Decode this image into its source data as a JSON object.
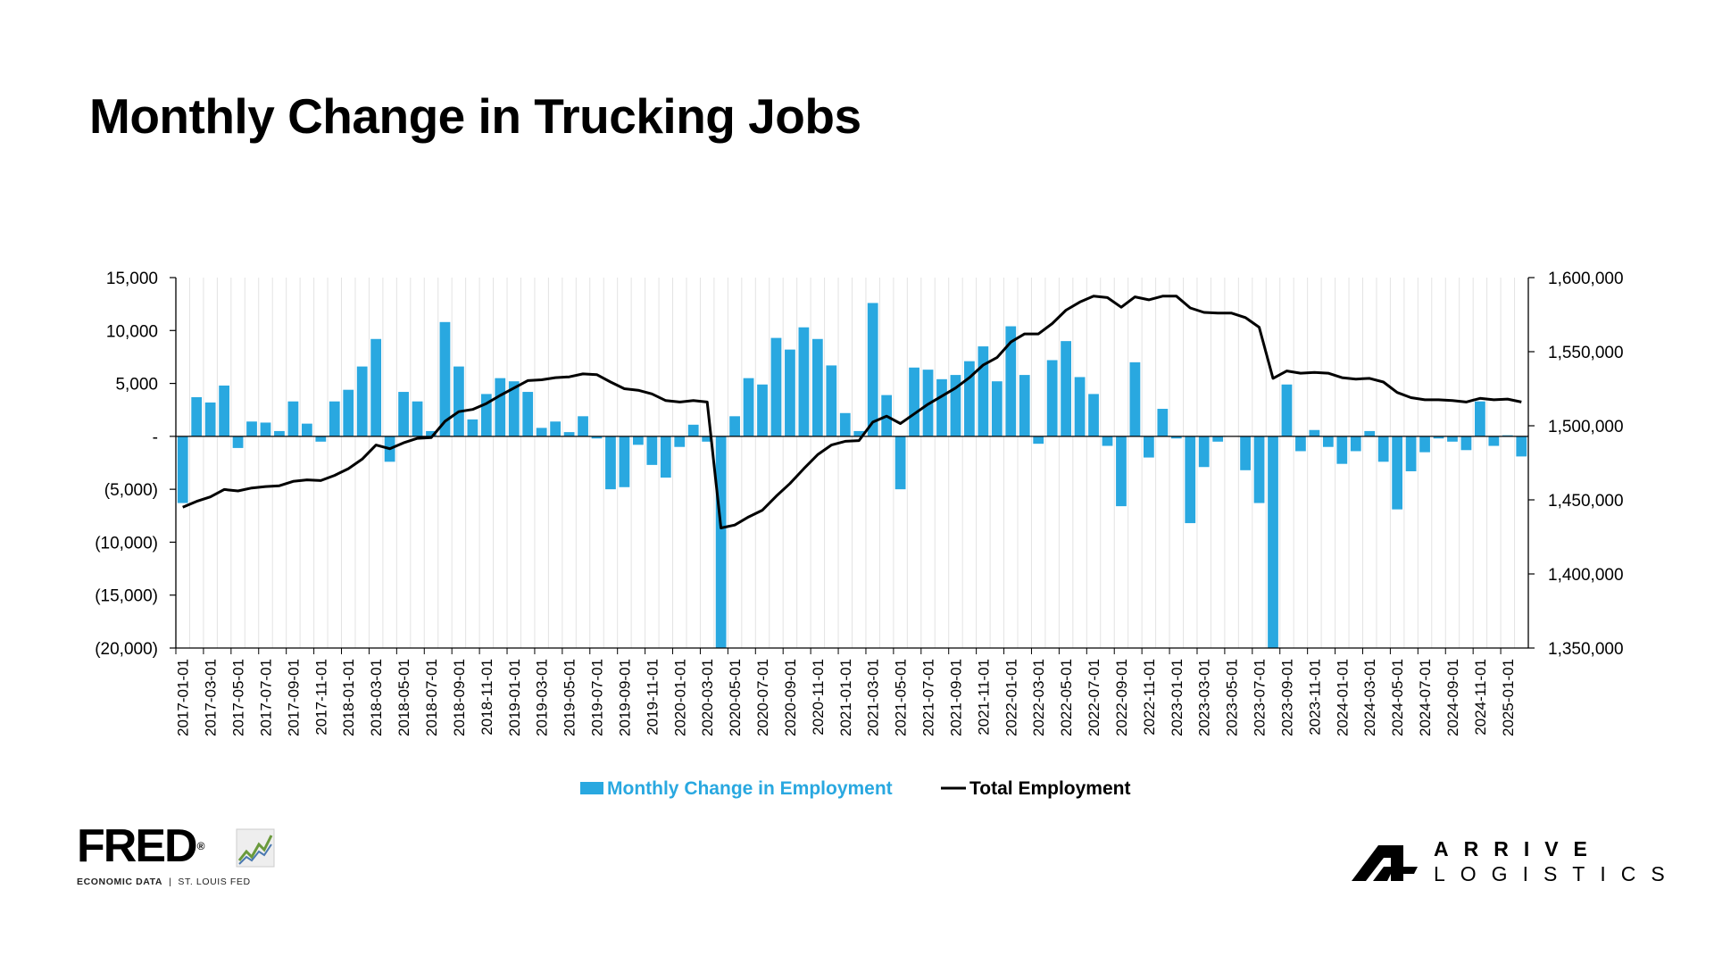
{
  "chart_data": {
    "type": "bar+line",
    "title": "Monthly Change in Trucking Jobs",
    "series": [
      {
        "name": "Monthly Change in Employment",
        "type": "bar",
        "axis": "left",
        "color": "#29A8E0",
        "values": [
          -6300,
          3700,
          3200,
          4800,
          -1100,
          1400,
          1300,
          500,
          3300,
          1200,
          -500,
          3300,
          4400,
          6600,
          9200,
          -2400,
          4200,
          3300,
          500,
          10800,
          6600,
          1600,
          4000,
          5500,
          5200,
          4200,
          800,
          1400,
          400,
          1900,
          -200,
          -5000,
          -4800,
          -800,
          -2700,
          -3900,
          -1000,
          1100,
          -500,
          -20000,
          1900,
          5500,
          4900,
          9300,
          8200,
          10300,
          9200,
          6700,
          2200,
          500,
          12600,
          3900,
          -5000,
          6500,
          6300,
          5400,
          5800,
          7100,
          8500,
          5200,
          10400,
          5800,
          -700,
          7200,
          9000,
          5600,
          4000,
          -900,
          -6600,
          7000,
          -2000,
          2600,
          -200,
          -8200,
          -2900,
          -500,
          0,
          -3200,
          -6300,
          -20000,
          4900,
          -1400,
          600,
          -1000,
          -2600,
          -1400,
          500,
          -2400,
          -6900,
          -3300,
          -1500,
          -200,
          -500,
          -1300,
          3300,
          -900,
          100,
          -1900
        ]
      },
      {
        "name": "Total Employment",
        "type": "line",
        "axis": "right",
        "color": "#000000",
        "values": [
          1445000,
          1449000,
          1452000,
          1457000,
          1456000,
          1458000,
          1459000,
          1459500,
          1462500,
          1463500,
          1463000,
          1466500,
          1471000,
          1477500,
          1487000,
          1484500,
          1488500,
          1491500,
          1492000,
          1503000,
          1509500,
          1511000,
          1515000,
          1520500,
          1525500,
          1530500,
          1531000,
          1532500,
          1533000,
          1535000,
          1534500,
          1529500,
          1525000,
          1524000,
          1521500,
          1517000,
          1516000,
          1517000,
          1516000,
          1431000,
          1433000,
          1438500,
          1443000,
          1452500,
          1461000,
          1471000,
          1480500,
          1487000,
          1489500,
          1490000,
          1502500,
          1506500,
          1501500,
          1508000,
          1514500,
          1520000,
          1525500,
          1532500,
          1541000,
          1546000,
          1556500,
          1562000,
          1562000,
          1569000,
          1578000,
          1583500,
          1587500,
          1586500,
          1580000,
          1587000,
          1585000,
          1587500,
          1587500,
          1579500,
          1576500,
          1576000,
          1576000,
          1573000,
          1566500,
          1532000,
          1537000,
          1535500,
          1536000,
          1535500,
          1532500,
          1531500,
          1532000,
          1529500,
          1522500,
          1519000,
          1517500,
          1517500,
          1517000,
          1516000,
          1518500,
          1517500,
          1518000,
          1516000
        ]
      }
    ],
    "x_tick_labels": [
      "2017-01-01",
      "2017-03-01",
      "2017-05-01",
      "2017-07-01",
      "2017-09-01",
      "2017-11-01",
      "2018-01-01",
      "2018-03-01",
      "2018-05-01",
      "2018-07-01",
      "2018-09-01",
      "2018-11-01",
      "2019-01-01",
      "2019-03-01",
      "2019-05-01",
      "2019-07-01",
      "2019-09-01",
      "2019-11-01",
      "2020-01-01",
      "2020-03-01",
      "2020-05-01",
      "2020-07-01",
      "2020-09-01",
      "2020-11-01",
      "2021-01-01",
      "2021-03-01",
      "2021-05-01",
      "2021-07-01",
      "2021-09-01",
      "2021-11-01",
      "2022-01-01",
      "2022-03-01",
      "2022-05-01",
      "2022-07-01",
      "2022-09-01",
      "2022-11-01",
      "2023-01-01",
      "2023-03-01",
      "2023-05-01",
      "2023-07-01",
      "2023-09-01",
      "2023-11-01",
      "2024-01-01",
      "2024-03-01",
      "2024-05-01",
      "2024-07-01",
      "2024-09-01",
      "2024-11-01",
      "2025-01-01"
    ],
    "x_range": [
      "2017-01-01",
      "2025-02-01"
    ],
    "y_left": {
      "range": [
        -20000,
        15000
      ],
      "ticks": [
        15000,
        10000,
        5000,
        0,
        -5000,
        -10000,
        -15000,
        -20000
      ],
      "tick_labels": [
        "15,000",
        "10,000",
        "5,000",
        "-",
        "(5,000)",
        "(10,000)",
        "(15,000)",
        "(20,000)"
      ]
    },
    "y_right": {
      "range": [
        1350000,
        1600000
      ],
      "ticks": [
        1600000,
        1550000,
        1500000,
        1450000,
        1400000,
        1350000
      ],
      "tick_labels": [
        "1,600,000",
        "1,550,000",
        "1,500,000",
        "1,450,000",
        "1,400,000",
        "1,350,000"
      ]
    },
    "grid": "vertical",
    "legend_position": "bottom-center"
  },
  "fred": {
    "word": "FRED",
    "reg": "®",
    "sub_left": "ECONOMIC DATA",
    "sub_sep": "|",
    "sub_right": "ST. LOUIS FED"
  },
  "arrive": {
    "line1": "ARRIVE",
    "line2": "LOGISTICS"
  }
}
